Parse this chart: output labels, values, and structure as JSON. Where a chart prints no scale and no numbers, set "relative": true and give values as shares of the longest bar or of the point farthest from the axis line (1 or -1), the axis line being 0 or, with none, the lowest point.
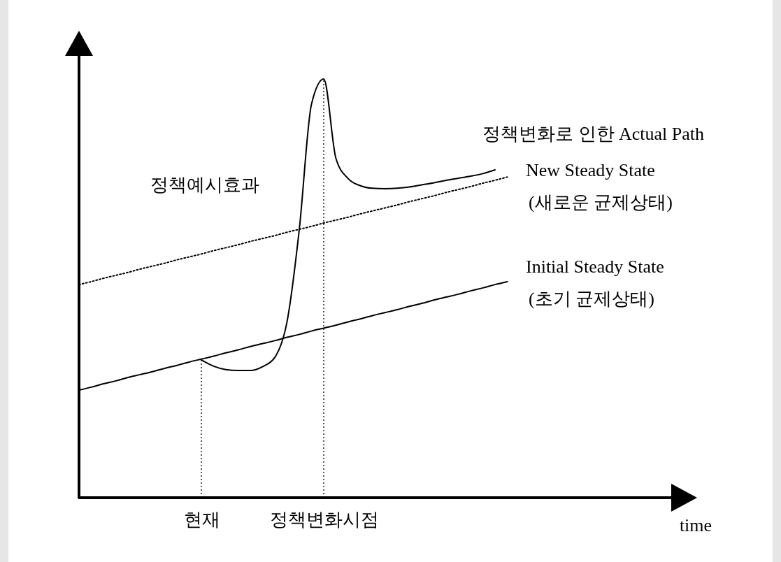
{
  "chart_data": {
    "type": "line",
    "relative": true,
    "xlabel": "time",
    "categories": [
      null,
      null,
      null,
      null,
      null,
      null,
      null,
      null,
      null,
      null,
      "현재",
      null,
      null,
      null,
      null,
      null,
      null,
      null,
      null,
      null,
      "정책변화시점",
      null,
      null,
      null,
      null,
      null,
      null,
      null,
      null,
      null,
      null,
      null,
      null,
      null,
      null,
      null,
      null,
      null,
      null,
      null,
      null,
      null,
      null,
      null,
      null,
      null,
      null,
      null,
      null
    ],
    "legend": false,
    "annotations": [
      "정책예시효과"
    ],
    "ref_lines": [
      {
        "axis": "x",
        "value": "현재",
        "line_style": "dotted",
        "color": "#000000"
      },
      {
        "axis": "x",
        "value": "정책변화시점",
        "line_style": "dotted",
        "color": "#000000"
      }
    ],
    "series": [
      {
        "name": "정책변화로 인한 Actual Path",
        "color": "#000000",
        "line_style": "solid",
        "values": [
          null,
          null,
          null,
          null,
          null,
          null,
          null,
          null,
          null,
          null,
          0.329,
          0.314,
          0.306,
          0.304,
          0.304,
          0.313,
          0.335,
          0.42,
          0.64,
          0.94,
          1,
          0.81,
          0.762,
          0.745,
          0.739,
          0.738,
          0.739,
          0.742,
          0.747,
          0.752,
          0.758,
          0.763,
          0.768,
          0.774,
          0.783,
          null,
          null,
          null,
          null,
          null,
          null,
          null,
          null,
          null,
          null,
          null,
          null,
          null,
          null
        ]
      },
      {
        "name": "New Steady State (새로운 균제상태)",
        "color": "#000000",
        "line_style": "dotted",
        "values": [
          0.509,
          0.516,
          0.524,
          0.531,
          0.538,
          0.546,
          0.553,
          0.56,
          0.568,
          0.575,
          0.582,
          0.59,
          0.597,
          0.604,
          0.612,
          0.619,
          0.626,
          0.634,
          0.641,
          0.648,
          0.656,
          0.663,
          0.67,
          0.678,
          0.685,
          0.692,
          0.699,
          0.707,
          0.714,
          0.721,
          0.729,
          0.736,
          0.743,
          0.751,
          0.758,
          0.766,
          null,
          null,
          null,
          null,
          null,
          null,
          null,
          null,
          null,
          null,
          null,
          null,
          null
        ]
      },
      {
        "name": "Initial Steady State (초기 균제상태)",
        "color": "#000000",
        "line_style": "solid",
        "values": [
          0.257,
          0.264,
          0.272,
          0.279,
          0.287,
          0.294,
          0.301,
          0.309,
          0.316,
          0.324,
          0.331,
          0.338,
          0.346,
          0.353,
          0.361,
          0.368,
          0.375,
          0.383,
          0.39,
          0.398,
          0.405,
          0.412,
          0.42,
          0.427,
          0.435,
          0.442,
          0.449,
          0.457,
          0.464,
          0.472,
          0.479,
          0.486,
          0.494,
          0.501,
          0.509,
          0.516,
          null,
          null,
          null,
          null,
          null,
          null,
          null,
          null,
          null,
          null,
          null,
          null,
          null
        ]
      }
    ]
  }
}
